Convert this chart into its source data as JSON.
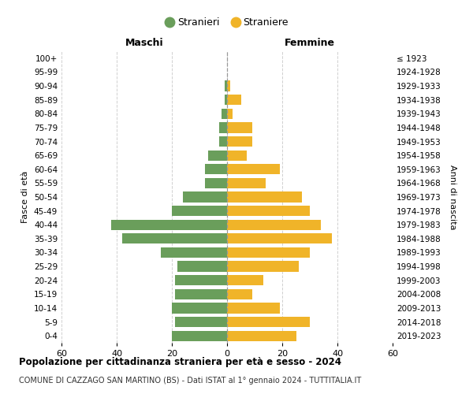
{
  "age_groups": [
    "0-4",
    "5-9",
    "10-14",
    "15-19",
    "20-24",
    "25-29",
    "30-34",
    "35-39",
    "40-44",
    "45-49",
    "50-54",
    "55-59",
    "60-64",
    "65-69",
    "70-74",
    "75-79",
    "80-84",
    "85-89",
    "90-94",
    "95-99",
    "100+"
  ],
  "birth_years": [
    "2019-2023",
    "2014-2018",
    "2009-2013",
    "2004-2008",
    "1999-2003",
    "1994-1998",
    "1989-1993",
    "1984-1988",
    "1979-1983",
    "1974-1978",
    "1969-1973",
    "1964-1968",
    "1959-1963",
    "1954-1958",
    "1949-1953",
    "1944-1948",
    "1939-1943",
    "1934-1938",
    "1929-1933",
    "1924-1928",
    "≤ 1923"
  ],
  "maschi": [
    20,
    19,
    20,
    19,
    19,
    18,
    24,
    38,
    42,
    20,
    16,
    8,
    8,
    7,
    3,
    3,
    2,
    1,
    1,
    0,
    0
  ],
  "femmine": [
    25,
    30,
    19,
    9,
    13,
    26,
    30,
    38,
    34,
    30,
    27,
    14,
    19,
    7,
    9,
    9,
    2,
    5,
    1,
    0,
    0
  ],
  "maschi_color": "#6a9e5b",
  "femmine_color": "#f0b429",
  "title": "Popolazione per cittadinanza straniera per età e sesso - 2024",
  "subtitle": "COMUNE DI CAZZAGO SAN MARTINO (BS) - Dati ISTAT al 1° gennaio 2024 - TUTTITALIA.IT",
  "xlabel_left": "Maschi",
  "xlabel_right": "Femmine",
  "ylabel_left": "Fasce di età",
  "ylabel_right": "Anni di nascita",
  "legend_maschi": "Stranieri",
  "legend_femmine": "Straniere",
  "xlim": 60,
  "background_color": "#ffffff",
  "grid_color": "#d0d0d0"
}
